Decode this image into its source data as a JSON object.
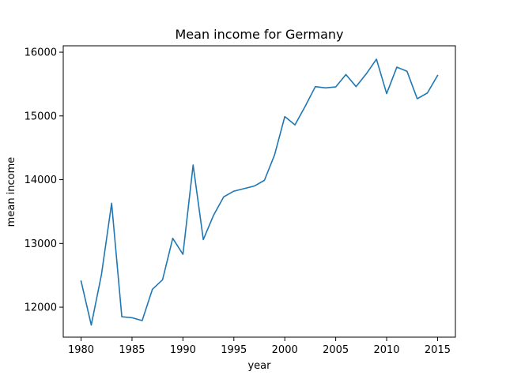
{
  "chart_data": {
    "type": "line",
    "title": "Mean income for Germany",
    "xlabel": "year",
    "ylabel": "mean income",
    "xlim": [
      1978.25,
      2016.75
    ],
    "ylim": [
      11530,
      16100
    ],
    "xticks": [
      1980,
      1985,
      1990,
      1995,
      2000,
      2005,
      2010,
      2015
    ],
    "yticks": [
      12000,
      13000,
      14000,
      15000,
      16000
    ],
    "grid": false,
    "line_color": "#1f77b4",
    "series": [
      {
        "x": [
          1980,
          1981,
          1982,
          1983,
          1984,
          1985,
          1986,
          1987,
          1988,
          1989,
          1990,
          1991,
          1992,
          1993,
          1994,
          1995,
          1996,
          1997,
          1998,
          1999,
          2000,
          2001,
          2002,
          2003,
          2004,
          2005,
          2006,
          2007,
          2008,
          2009,
          2010,
          2011,
          2012,
          2013,
          2014,
          2015
        ],
        "y": [
          12410,
          11720,
          12510,
          13630,
          11850,
          11835,
          11790,
          12280,
          12430,
          13080,
          12830,
          14230,
          13060,
          13440,
          13730,
          13820,
          13860,
          13900,
          13990,
          14390,
          14990,
          14860,
          15150,
          15460,
          15440,
          15455,
          15650,
          15460,
          15660,
          15890,
          15350,
          15765,
          15700,
          15270,
          15360,
          15635
        ]
      }
    ]
  }
}
